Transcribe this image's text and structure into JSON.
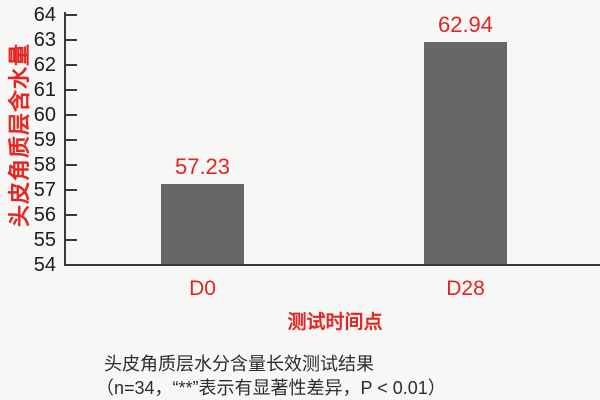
{
  "chart_data": {
    "type": "bar",
    "categories": [
      "D0",
      "D28"
    ],
    "values": [
      57.23,
      62.94
    ],
    "value_labels": [
      "57.23",
      "62.94"
    ],
    "xlabel": "测试时间点",
    "ylabel": "头皮角质层含水量",
    "title": "头皮角质层水分含量长效测试结果",
    "annotation": "（n=34，“**”表示有显著性差异，P < 0.01）",
    "ylim": [
      54,
      64
    ],
    "ytick_step": 1,
    "yticks": [
      54,
      55,
      56,
      57,
      58,
      59,
      60,
      61,
      62,
      63,
      64
    ],
    "grid": false,
    "legend": null,
    "bar_color": "#676767",
    "accent_color": "#e42522",
    "axis_color": "#3a3a3a",
    "tick_label_color": "#1c1c1c",
    "caption_color": "#2d2d2d",
    "background_color": "#f7f7f5"
  }
}
